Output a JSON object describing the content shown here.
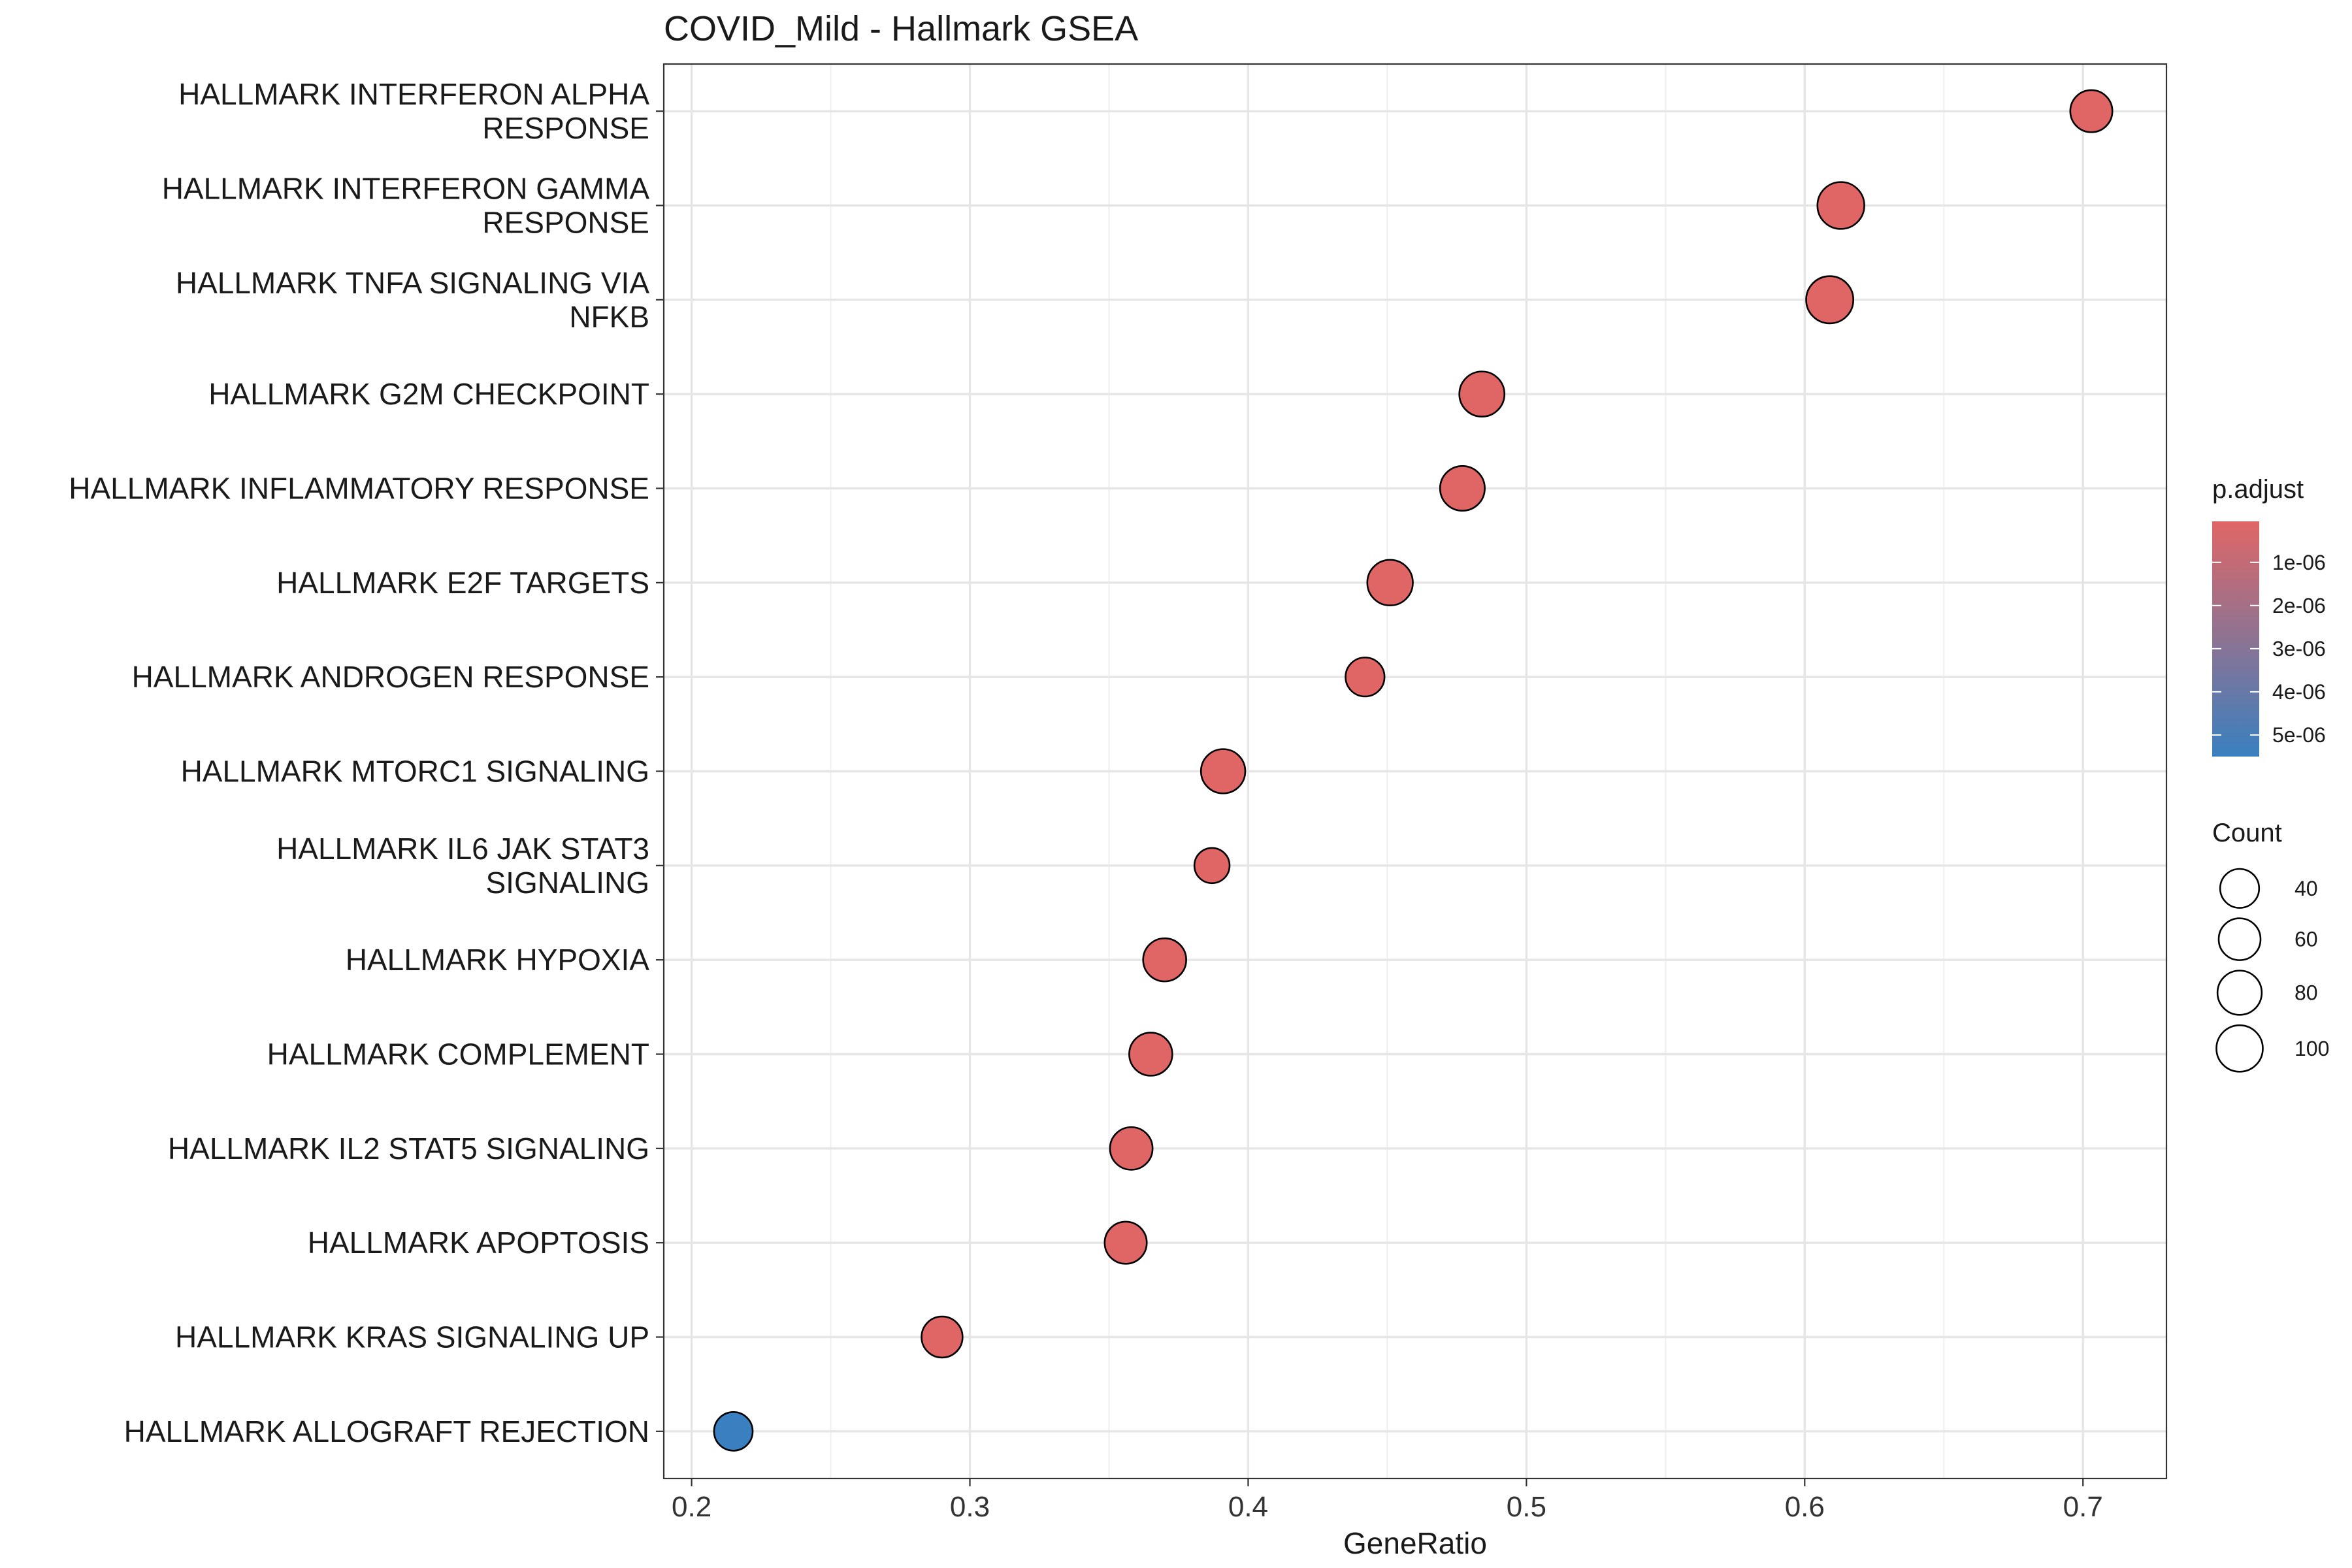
{
  "chart_data": {
    "type": "scatter",
    "title": "COVID_Mild - Hallmark GSEA",
    "xlabel": "GeneRatio",
    "ylabel": "",
    "xlim": [
      0.19,
      0.73
    ],
    "xticks": [
      0.2,
      0.3,
      0.4,
      0.5,
      0.6,
      0.7
    ],
    "xtick_labels": [
      "0.2",
      "0.3",
      "0.4",
      "0.5",
      "0.6",
      "0.7"
    ],
    "grid": true,
    "points": [
      {
        "label": [
          "HALLMARK INTERFERON ALPHA",
          "RESPONSE"
        ],
        "x": 0.703,
        "count": 62,
        "p_adjust": 5e-08
      },
      {
        "label": [
          "HALLMARK INTERFERON GAMMA",
          "RESPONSE"
        ],
        "x": 0.613,
        "count": 105,
        "p_adjust": 5e-08
      },
      {
        "label": [
          "HALLMARK TNFA SIGNALING VIA",
          "NFKB"
        ],
        "x": 0.609,
        "count": 108,
        "p_adjust": 5e-08
      },
      {
        "label": [
          "HALLMARK G2M CHECKPOINT"
        ],
        "x": 0.484,
        "count": 88,
        "p_adjust": 5e-08
      },
      {
        "label": [
          "HALLMARK INFLAMMATORY RESPONSE"
        ],
        "x": 0.477,
        "count": 84,
        "p_adjust": 5e-08
      },
      {
        "label": [
          "HALLMARK E2F TARGETS"
        ],
        "x": 0.451,
        "count": 92,
        "p_adjust": 5e-08
      },
      {
        "label": [
          "HALLMARK ANDROGEN RESPONSE"
        ],
        "x": 0.442,
        "count": 40,
        "p_adjust": 5e-08
      },
      {
        "label": [
          "HALLMARK MTORC1 SIGNALING"
        ],
        "x": 0.391,
        "count": 80,
        "p_adjust": 5e-08
      },
      {
        "label": [
          "HALLMARK IL6 JAK STAT3",
          "SIGNALING"
        ],
        "x": 0.387,
        "count": 20,
        "p_adjust": 5e-08
      },
      {
        "label": [
          "HALLMARK HYPOXIA"
        ],
        "x": 0.37,
        "count": 70,
        "p_adjust": 5e-08
      },
      {
        "label": [
          "HALLMARK COMPLEMENT"
        ],
        "x": 0.365,
        "count": 70,
        "p_adjust": 5e-08
      },
      {
        "label": [
          "HALLMARK IL2 STAT5 SIGNALING"
        ],
        "x": 0.358,
        "count": 66,
        "p_adjust": 5e-08
      },
      {
        "label": [
          "HALLMARK APOPTOSIS"
        ],
        "x": 0.356,
        "count": 62,
        "p_adjust": 5e-08
      },
      {
        "label": [
          "HALLMARK KRAS SIGNALING UP"
        ],
        "x": 0.29,
        "count": 54,
        "p_adjust": 5e-08
      },
      {
        "label": [
          "HALLMARK ALLOGRAFT REJECTION"
        ],
        "x": 0.215,
        "count": 38,
        "p_adjust": 5.5e-06
      }
    ],
    "legend_color": {
      "title": "p.adjust",
      "ticks": [
        1e-06,
        2e-06,
        3e-06,
        4e-06,
        5e-06
      ],
      "tick_labels": [
        "1e-06",
        "2e-06",
        "3e-06",
        "4e-06",
        "5e-06"
      ],
      "range": [
        5e-08,
        5.5e-06
      ],
      "low_color": "#E06666",
      "high_color": "#3A80C0",
      "placement": "right"
    },
    "legend_size": {
      "title": "Count",
      "values": [
        40,
        60,
        80,
        100
      ],
      "labels": [
        "40",
        "60",
        "80",
        "100"
      ],
      "placement": "right"
    }
  }
}
